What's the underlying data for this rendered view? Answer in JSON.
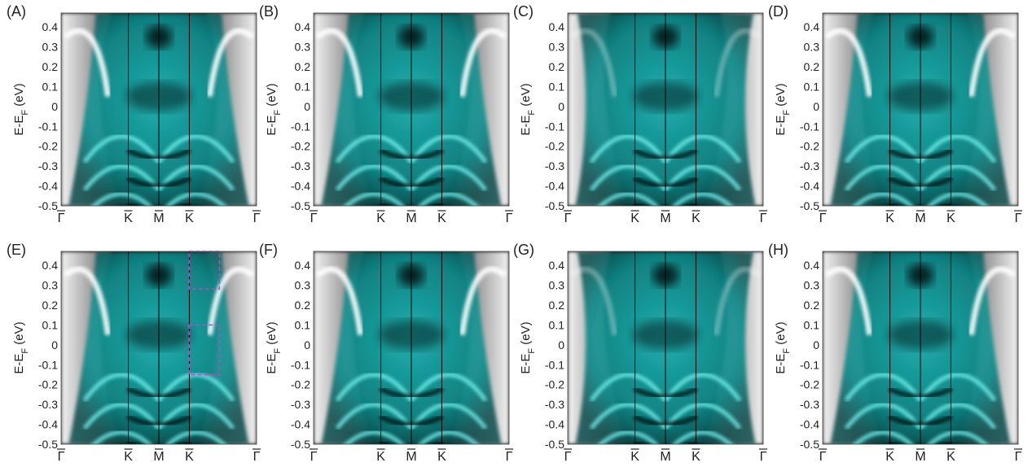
{
  "figure": {
    "panels": [
      {
        "label": "(A)",
        "variant": 0
      },
      {
        "label": "(B)",
        "variant": 1
      },
      {
        "label": "(C)",
        "variant": 2
      },
      {
        "label": "(D)",
        "variant": 3
      },
      {
        "label": "(E)",
        "variant": 0
      },
      {
        "label": "(F)",
        "variant": 1
      },
      {
        "label": "(G)",
        "variant": 2
      },
      {
        "label": "(H)",
        "variant": 3
      }
    ],
    "y_axis": {
      "label_main": "E-E",
      "label_sub": "F",
      "label_unit": " (eV)",
      "ticks": [
        "0.4",
        "0.3",
        "0.2",
        "0.1",
        "0",
        "-0.1",
        "-0.2",
        "-0.3",
        "-0.4",
        "-0.5"
      ],
      "range": [
        -0.5,
        0.47
      ]
    },
    "x_axis": {
      "ticks": [
        {
          "label": "Γ",
          "k": 0.0
        },
        {
          "label": "K",
          "k": 0.344
        },
        {
          "label": "M",
          "k": 0.5
        },
        {
          "label": "K",
          "k": 0.656
        },
        {
          "label": "Γ",
          "k": 1.0
        }
      ]
    },
    "colors": {
      "spectral": "#1fb7b7",
      "spectral_bright": "#6ff2ee",
      "background": "#000000",
      "bulk_gray": "#e6e6e6",
      "highlight_box": "#d23cd2"
    },
    "highlight_boxes": {
      "panel": "(E)",
      "boxes": [
        {
          "k_range": [
            0.655,
            0.81
          ],
          "energy_range": [
            0.28,
            0.47
          ]
        },
        {
          "k_range": [
            0.655,
            0.81
          ],
          "energy_range": [
            -0.15,
            0.1
          ]
        }
      ]
    }
  }
}
